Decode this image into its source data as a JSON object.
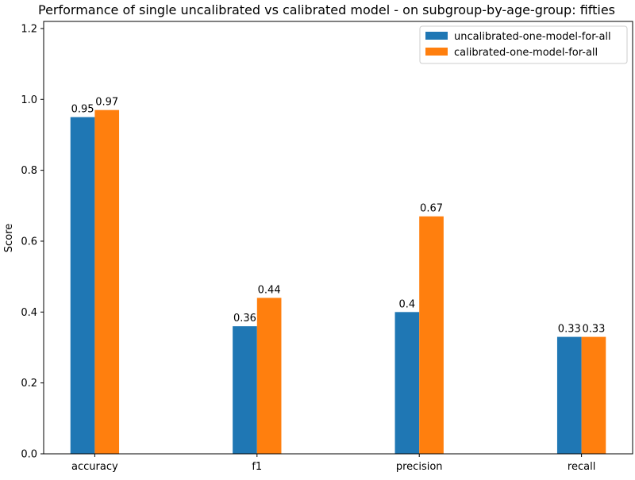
{
  "chart_data": {
    "type": "bar",
    "title": "Performance of single uncalibrated vs calibrated model - on subgroup-by-age-group: fifties",
    "xlabel": "",
    "ylabel": "Score",
    "categories": [
      "accuracy",
      "f1",
      "precision",
      "recall"
    ],
    "series": [
      {
        "name": "uncalibrated-one-model-for-all",
        "values": [
          0.95,
          0.36,
          0.4,
          0.33
        ],
        "labels": [
          "0.95",
          "0.36",
          "0.4",
          "0.33"
        ],
        "color": "#1f77b4"
      },
      {
        "name": "calibrated-one-model-for-all",
        "values": [
          0.97,
          0.44,
          0.67,
          0.33
        ],
        "labels": [
          "0.97",
          "0.44",
          "0.67",
          "0.33"
        ],
        "color": "#ff7f0e"
      }
    ],
    "ylim": [
      0,
      1.22
    ],
    "yticks": [
      0.0,
      0.2,
      0.4,
      0.6,
      0.8,
      1.0,
      1.2
    ],
    "ytick_labels": [
      "0.0",
      "0.2",
      "0.4",
      "0.6",
      "0.8",
      "1.0",
      "1.2"
    ],
    "grid": false,
    "legend_position": "top-right"
  }
}
